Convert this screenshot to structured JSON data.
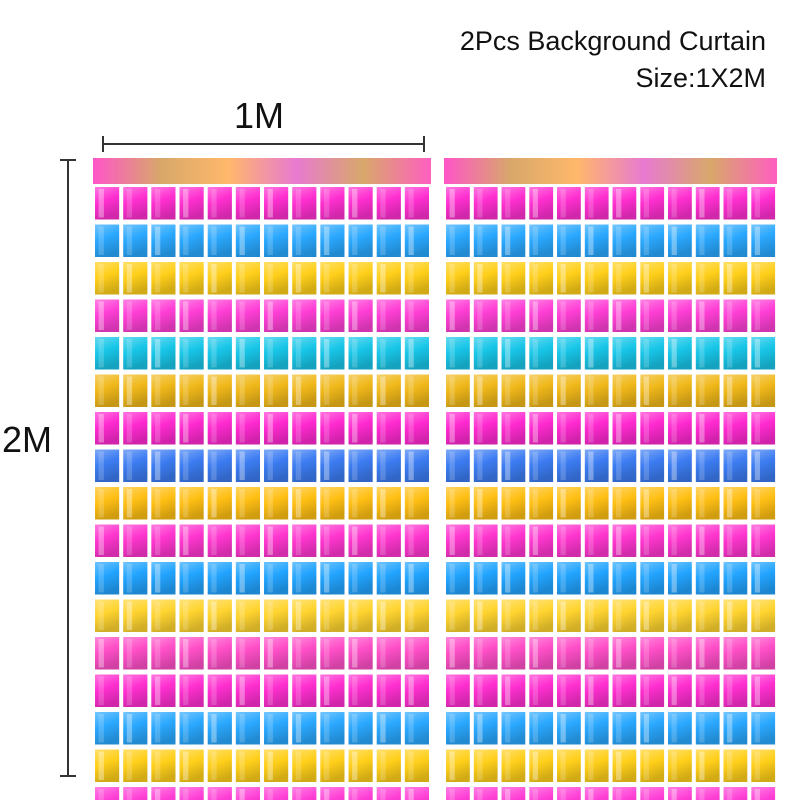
{
  "header": {
    "title": "2Pcs Background Curtain",
    "size": "Size:1X2M"
  },
  "dimensions": {
    "width_label": "1M",
    "height_label": "2M"
  },
  "curtain": {
    "count": 2,
    "stripe_colors": [
      "#ff2fd0",
      "#2aa8ff",
      "#ffcf1a",
      "#ff3fd6",
      "#18c6e8",
      "#f0b81a",
      "#ff2ad0",
      "#3c7cf2",
      "#ffbf14",
      "#ff36cf",
      "#22a4ff",
      "#ffd430",
      "#ff4fc8"
    ],
    "top_band_color": "#d8a86a",
    "gap_color": "#ffffff"
  }
}
